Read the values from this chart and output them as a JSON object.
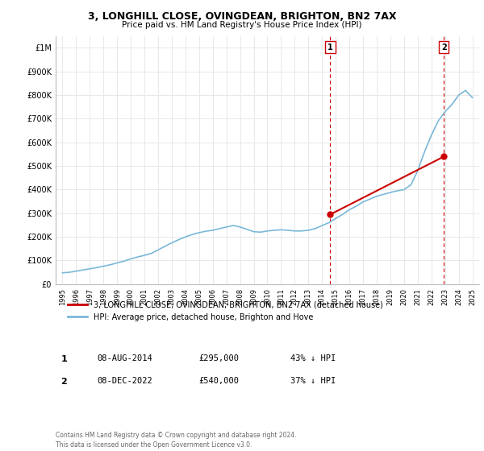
{
  "title": "3, LONGHILL CLOSE, OVINGDEAN, BRIGHTON, BN2 7AX",
  "subtitle": "Price paid vs. HM Land Registry's House Price Index (HPI)",
  "hpi_years": [
    1995,
    1995.5,
    1996,
    1996.5,
    1997,
    1997.5,
    1998,
    1998.5,
    1999,
    1999.5,
    2000,
    2000.5,
    2001,
    2001.5,
    2002,
    2002.5,
    2003,
    2003.5,
    2004,
    2004.5,
    2005,
    2005.5,
    2006,
    2006.5,
    2007,
    2007.5,
    2008,
    2008.5,
    2009,
    2009.5,
    2010,
    2010.5,
    2011,
    2011.5,
    2012,
    2012.5,
    2013,
    2013.5,
    2014,
    2014.5,
    2015,
    2015.5,
    2016,
    2016.5,
    2017,
    2017.5,
    2018,
    2018.5,
    2019,
    2019.5,
    2020,
    2020.5,
    2021,
    2021.5,
    2022,
    2022.5,
    2023,
    2023.5,
    2024,
    2024.5,
    2025
  ],
  "hpi_values": [
    48000,
    50000,
    55000,
    60000,
    65000,
    70000,
    76000,
    82000,
    90000,
    97000,
    107000,
    115000,
    122000,
    130000,
    145000,
    160000,
    175000,
    188000,
    200000,
    210000,
    218000,
    224000,
    228000,
    235000,
    242000,
    248000,
    242000,
    232000,
    222000,
    220000,
    225000,
    228000,
    230000,
    228000,
    225000,
    225000,
    228000,
    235000,
    248000,
    260000,
    278000,
    295000,
    315000,
    330000,
    348000,
    360000,
    372000,
    380000,
    388000,
    395000,
    400000,
    420000,
    480000,
    560000,
    630000,
    690000,
    730000,
    760000,
    800000,
    820000,
    790000
  ],
  "sale_years": [
    2014.6,
    2022.92
  ],
  "sale_values": [
    295000,
    540000
  ],
  "sale_labels": [
    "1",
    "2"
  ],
  "ylim": [
    0,
    1050000
  ],
  "xlim_start": 1994.5,
  "xlim_end": 2025.5,
  "yticks": [
    0,
    100000,
    200000,
    300000,
    400000,
    500000,
    600000,
    700000,
    800000,
    900000,
    1000000
  ],
  "ytick_labels": [
    "£0",
    "£100K",
    "£200K",
    "£300K",
    "£400K",
    "£500K",
    "£600K",
    "£700K",
    "£800K",
    "£900K",
    "£1M"
  ],
  "xtick_years": [
    1995,
    1996,
    1997,
    1998,
    1999,
    2000,
    2001,
    2002,
    2003,
    2004,
    2005,
    2006,
    2007,
    2008,
    2009,
    2010,
    2011,
    2012,
    2013,
    2014,
    2015,
    2016,
    2017,
    2018,
    2019,
    2020,
    2021,
    2022,
    2023,
    2024,
    2025
  ],
  "hpi_color": "#7ab8d9",
  "sale_color": "#cc0000",
  "vline_color": "#cc0000",
  "grid_color": "#e8e8e8",
  "bg_color": "#ffffff",
  "legend_label_sale": "3, LONGHILL CLOSE, OVINGDEAN, BRIGHTON, BN2 7AX (detached house)",
  "legend_label_hpi": "HPI: Average price, detached house, Brighton and Hove",
  "table_row1": [
    "1",
    "08-AUG-2014",
    "£295,000",
    "43% ↓ HPI"
  ],
  "table_row2": [
    "2",
    "08-DEC-2022",
    "£540,000",
    "37% ↓ HPI"
  ],
  "footer": "Contains HM Land Registry data © Crown copyright and database right 2024.\nThis data is licensed under the Open Government Licence v3.0."
}
